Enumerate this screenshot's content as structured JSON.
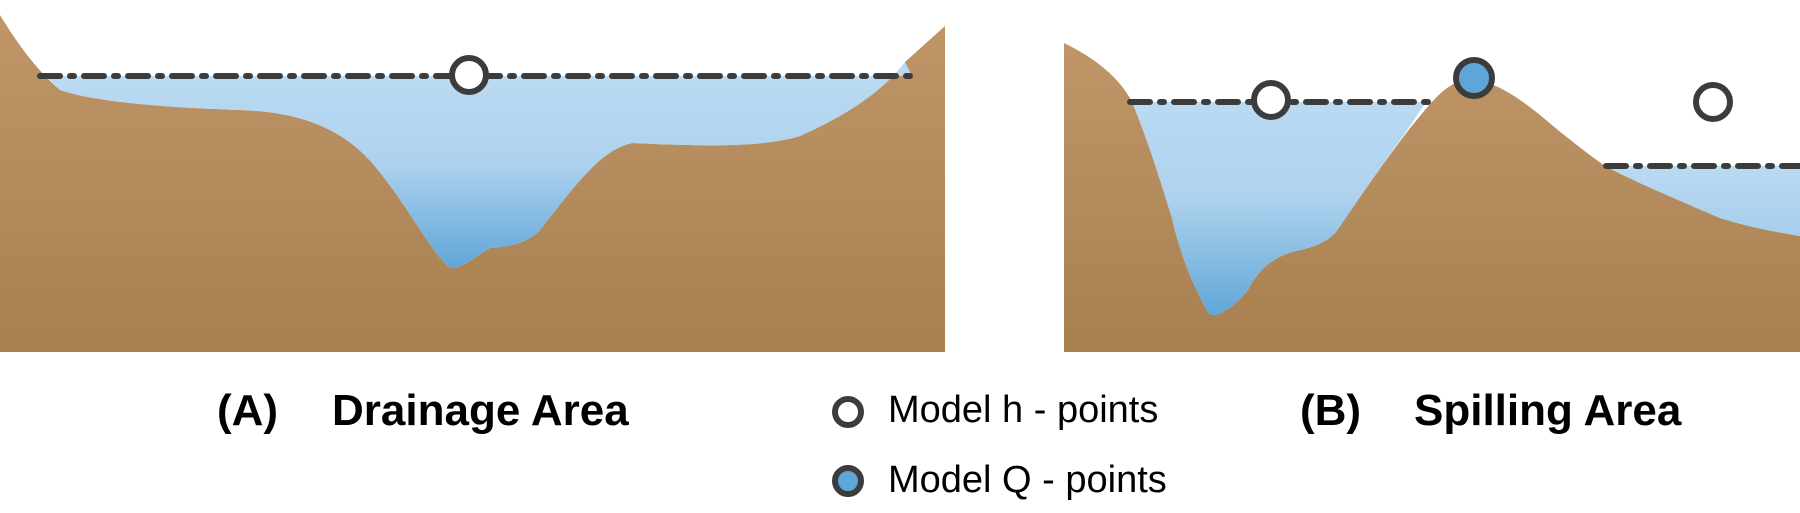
{
  "panels": {
    "a": {
      "letter": "(A)",
      "title": "Drainage Area"
    },
    "b": {
      "letter": "(B)",
      "title": "Spilling Area"
    }
  },
  "legend": {
    "h_points": {
      "label": "Model h - points",
      "icon": "hollow-circle"
    },
    "q_points": {
      "label": "Model Q - points",
      "icon": "blue-filled-circle"
    }
  },
  "colors": {
    "terrain_top": "#C09668",
    "terrain_bottom": "#A88050",
    "water_top": "#BBDAF2",
    "water_bottom": "#5EA6D8",
    "line": "#3C3C3C",
    "q_point_fill": "#5EA6D8"
  }
}
